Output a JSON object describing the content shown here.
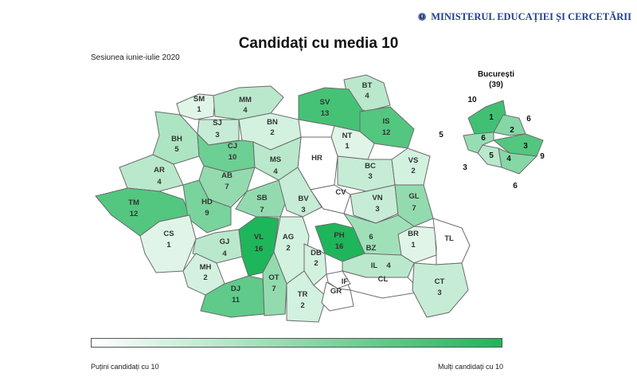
{
  "header": {
    "ministry": "MINISTERUL EDUCAȚIEI ȘI CERCETĂRII",
    "title": "Candidați cu media 10",
    "session": "Sesiunea iunie-iulie 2020"
  },
  "colors": {
    "low": "#ffffff",
    "high": "#1fb55a",
    "border": "#6b6b6b"
  },
  "map_data": {
    "max": 16,
    "counties": [
      {
        "code": "SM",
        "value": "1"
      },
      {
        "code": "MM",
        "value": "4"
      },
      {
        "code": "BT",
        "value": "4"
      },
      {
        "code": "SV",
        "value": "13"
      },
      {
        "code": "SJ",
        "value": "3"
      },
      {
        "code": "BN",
        "value": "2"
      },
      {
        "code": "IS",
        "value": "12"
      },
      {
        "code": "BH",
        "value": "5"
      },
      {
        "code": "CJ",
        "value": "10"
      },
      {
        "code": "NT",
        "value": "1"
      },
      {
        "code": "HR",
        "value": ""
      },
      {
        "code": "AR",
        "value": "4"
      },
      {
        "code": "MS",
        "value": "4"
      },
      {
        "code": "BC",
        "value": "3"
      },
      {
        "code": "VS",
        "value": "2"
      },
      {
        "code": "AB",
        "value": "7"
      },
      {
        "code": "TM",
        "value": "12"
      },
      {
        "code": "HD",
        "value": "9"
      },
      {
        "code": "SB",
        "value": "7"
      },
      {
        "code": "BV",
        "value": "3"
      },
      {
        "code": "CV",
        "value": ""
      },
      {
        "code": "VN",
        "value": "3"
      },
      {
        "code": "GL",
        "value": "7"
      },
      {
        "code": "CS",
        "value": "1"
      },
      {
        "code": "GJ",
        "value": "4"
      },
      {
        "code": "VL",
        "value": "16"
      },
      {
        "code": "AG",
        "value": "2"
      },
      {
        "code": "PH",
        "value": "16"
      },
      {
        "code": "BZ",
        "value": "6"
      },
      {
        "code": "BR",
        "value": "1"
      },
      {
        "code": "TL",
        "value": ""
      },
      {
        "code": "DB",
        "value": "2"
      },
      {
        "code": "MH",
        "value": "2"
      },
      {
        "code": "IL",
        "value": "4"
      },
      {
        "code": "CL",
        "value": ""
      },
      {
        "code": "IF",
        "value": ""
      },
      {
        "code": "DJ",
        "value": "11"
      },
      {
        "code": "OT",
        "value": "7"
      },
      {
        "code": "TR",
        "value": "2"
      },
      {
        "code": "GR",
        "value": ""
      },
      {
        "code": "CT",
        "value": "3"
      }
    ]
  },
  "bucuresti": {
    "label": "București",
    "total": "(39)",
    "sectors": [
      {
        "id": 1,
        "value": "1",
        "outside": "10"
      },
      {
        "id": 2,
        "value": "2",
        "outside": "6"
      },
      {
        "id": 3,
        "value": "3",
        "outside": "9"
      },
      {
        "id": 4,
        "value": "4",
        "outside": "6"
      },
      {
        "id": 5,
        "value": "5",
        "outside": "3"
      },
      {
        "id": 6,
        "value": "6",
        "outside": "5"
      }
    ]
  },
  "legend": {
    "low_label": "Puțini candidați cu 10",
    "high_label": "Mulți candidați cu 10"
  }
}
